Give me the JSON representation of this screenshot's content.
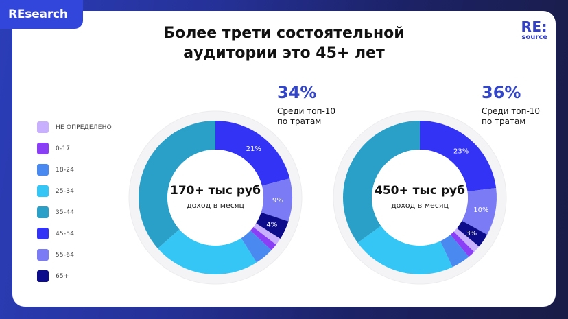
{
  "header": {
    "badge": "REsearch",
    "logo_main": "RE:",
    "logo_sub": "source",
    "title_line1": "Более трети состоятельной",
    "title_line2": "аудитории это 45+ лет"
  },
  "legend": [
    {
      "label": "НЕ ОПРЕДЕЛЕНО",
      "color": "#c9b0ff"
    },
    {
      "label": "0-17",
      "color": "#8a3ef5"
    },
    {
      "label": "18-24",
      "color": "#4a8af0"
    },
    {
      "label": "25-34",
      "color": "#35c6f5"
    },
    {
      "label": "35-44",
      "color": "#2aa0c8"
    },
    {
      "label": "45-54",
      "color": "#3333f5"
    },
    {
      "label": "55-64",
      "color": "#7b7cf5"
    },
    {
      "label": "65+",
      "color": "#0d0d8c"
    }
  ],
  "donuts": [
    {
      "center_main": "170+ тыс руб",
      "center_sub": "доход в месяц",
      "stat_pct": "34%",
      "stat_line1": "Среди топ-10",
      "stat_line2": "по тратам"
    },
    {
      "center_main": "450+ тыс руб",
      "center_sub": "доход в месяц",
      "stat_pct": "36%",
      "stat_line1": "Среди топ-10",
      "stat_line2": "по тратам"
    }
  ],
  "chart_data": [
    {
      "type": "pie",
      "title": "170+ тыс руб доход в месяц",
      "categories": [
        "45-54",
        "55-64",
        "65+",
        "НЕ ОПРЕДЕЛЕНО",
        "0-17",
        "18-24",
        "25-34",
        "35-44"
      ],
      "values": [
        21,
        9,
        4,
        1.5,
        1.5,
        4,
        22.5,
        36.5
      ],
      "labels": [
        "21%",
        "9%",
        "4%",
        "",
        "",
        "",
        "",
        ""
      ],
      "colors": [
        "#3333f5",
        "#7b7cf5",
        "#0d0d8c",
        "#c9b0ff",
        "#8a3ef5",
        "#4a8af0",
        "#35c6f5",
        "#2aa0c8"
      ],
      "annotation": "34% Среди топ-10 по тратам",
      "donut": true
    },
    {
      "type": "pie",
      "title": "450+ тыс руб доход в месяц",
      "categories": [
        "45-54",
        "55-64",
        "65+",
        "НЕ ОПРЕДЕЛЕНО",
        "0-17",
        "18-24",
        "25-34",
        "35-44"
      ],
      "values": [
        23,
        10,
        3,
        1.5,
        1.5,
        4,
        22,
        35
      ],
      "labels": [
        "23%",
        "10%",
        "3%",
        "",
        "",
        "",
        "",
        ""
      ],
      "colors": [
        "#3333f5",
        "#7b7cf5",
        "#0d0d8c",
        "#c9b0ff",
        "#8a3ef5",
        "#4a8af0",
        "#35c6f5",
        "#2aa0c8"
      ],
      "annotation": "36% Среди топ-10 по тратам",
      "donut": true
    }
  ]
}
